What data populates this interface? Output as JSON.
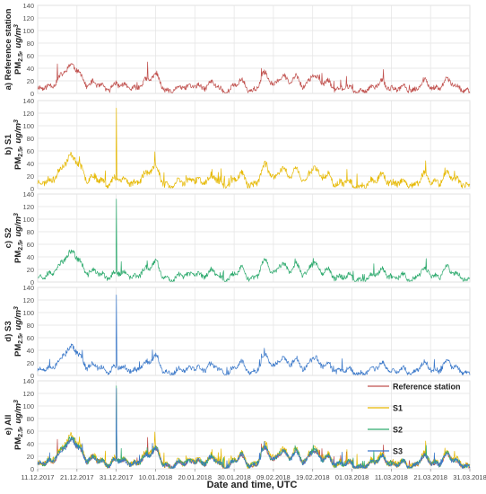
{
  "chart_data": {
    "type": "line",
    "x_start": "11.12.2017",
    "x_end": "31.03.2018",
    "x_tick_labels": [
      "11.12.2017",
      "21.12.2017",
      "31.12.2017",
      "10.01.2018",
      "20.01.2018",
      "30.01.2018",
      "09.02.2018",
      "19.02.2018",
      "01.03.2018",
      "11.03.2018",
      "21.03.2018",
      "31.03.2018"
    ],
    "xlabel": "Date and time, UTC",
    "y_ticks": [
      0,
      20,
      40,
      60,
      80,
      100,
      120,
      140
    ],
    "ylim": [
      0,
      140
    ],
    "grid": true,
    "legend_placement": "top-right of panel e",
    "series_colors": {
      "Reference station": "#c0504d",
      "S1": "#e6b800",
      "S2": "#2eaa6e",
      "S3": "#3a78c9"
    },
    "panels": [
      {
        "id": "a",
        "label_prefix": "a) Reference station",
        "label_pm": "PM",
        "label_sub": "2.5",
        "label_unit": ", ug/m",
        "label_sup": "3",
        "series": [
          "Reference station"
        ]
      },
      {
        "id": "b",
        "label_prefix": "b) S1",
        "label_pm": "PM",
        "label_sub": "2.5",
        "label_unit": ", ug/m",
        "label_sup": "3",
        "series": [
          "S1"
        ]
      },
      {
        "id": "c",
        "label_prefix": "c) S2",
        "label_pm": "PM",
        "label_sub": "2.5",
        "label_unit": ", ug/m",
        "label_sup": "3",
        "series": [
          "S2"
        ]
      },
      {
        "id": "d",
        "label_prefix": "d) S3",
        "label_pm": "PM",
        "label_sub": "2.5",
        "label_unit": ", ug/m",
        "label_sup": "3",
        "series": [
          "S3"
        ]
      },
      {
        "id": "e",
        "label_prefix": "e) All",
        "label_pm": "PM",
        "label_sub": "2.5",
        "label_unit": ", ug/m",
        "label_sup": "3",
        "series": [
          "Reference station",
          "S1",
          "S2",
          "S3"
        ]
      }
    ],
    "legend": [
      "Reference station",
      "S1",
      "S2",
      "S3"
    ],
    "key_points": [
      {
        "series": "S1",
        "date": "31.12.2017",
        "value": 128
      },
      {
        "series": "S2",
        "date": "31.12.2017",
        "value": 132
      },
      {
        "series": "S3",
        "date": "31.12.2017",
        "value": 128
      },
      {
        "series": "Reference station",
        "date": "16.12.2017",
        "value": 47
      },
      {
        "series": "Reference station",
        "date": "08.01.2018",
        "value": 50
      },
      {
        "series": "Reference station",
        "date": "09.03.2018",
        "value": 38
      }
    ]
  }
}
